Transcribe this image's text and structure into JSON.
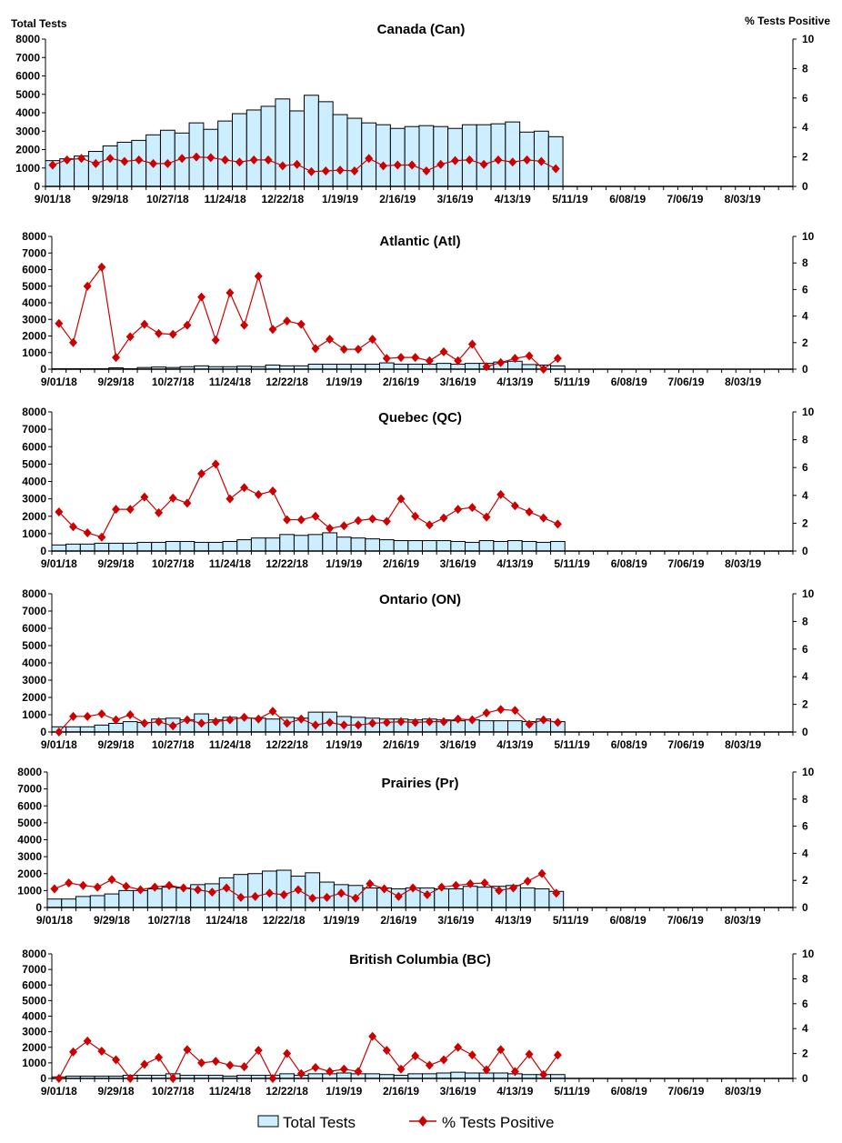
{
  "chart_data": [
    {
      "type": "bar+line",
      "title": "Canada (Can)",
      "ylabel": "Total Tests",
      "y2label": "% Tests Positive",
      "ylim": [
        0,
        8000
      ],
      "y2lim": [
        0,
        10
      ],
      "total_tests": [
        1400,
        1500,
        1650,
        1900,
        2200,
        2400,
        2500,
        2800,
        3050,
        2900,
        3450,
        3100,
        3550,
        3950,
        4150,
        4350,
        4750,
        4100,
        4950,
        4600,
        3900,
        3700,
        3450,
        3350,
        3150,
        3250,
        3300,
        3250,
        3150,
        3350,
        3350,
        3400,
        3500,
        2950,
        3000,
        2700
      ],
      "pct_positive": [
        1.45,
        1.8,
        1.9,
        1.55,
        1.9,
        1.7,
        1.8,
        1.55,
        1.55,
        1.9,
        2.0,
        1.95,
        1.8,
        1.65,
        1.8,
        1.8,
        1.4,
        1.5,
        1.0,
        1.05,
        1.1,
        1.05,
        1.9,
        1.4,
        1.45,
        1.45,
        1.05,
        1.5,
        1.75,
        1.8,
        1.5,
        1.8,
        1.65,
        1.8,
        1.7,
        1.2
      ]
    },
    {
      "type": "bar+line",
      "title": "Atlantic (Atl)",
      "ylim": [
        0,
        8000
      ],
      "y2lim": [
        0,
        10
      ],
      "total_tests": [
        30,
        30,
        30,
        30,
        80,
        30,
        100,
        130,
        100,
        150,
        200,
        150,
        150,
        180,
        150,
        250,
        200,
        200,
        300,
        300,
        300,
        300,
        300,
        380,
        300,
        300,
        300,
        350,
        300,
        350,
        350,
        430,
        480,
        280,
        250,
        200
      ],
      "pct_positive": [
        3.44,
        2.0,
        6.25,
        7.69,
        0.88,
        2.44,
        3.38,
        2.69,
        2.63,
        3.31,
        5.44,
        2.19,
        5.75,
        3.31,
        7.0,
        3.0,
        3.63,
        3.38,
        1.56,
        2.25,
        1.5,
        1.5,
        2.25,
        0.81,
        0.88,
        0.88,
        0.63,
        1.31,
        0.63,
        1.88,
        0.19,
        0.5,
        0.81,
        1.0,
        0,
        0.81
      ]
    },
    {
      "type": "bar+line",
      "title": "Quebec (QC)",
      "ylim": [
        0,
        8000
      ],
      "y2lim": [
        0,
        10
      ],
      "total_tests": [
        350,
        400,
        400,
        450,
        450,
        450,
        500,
        500,
        550,
        550,
        500,
        500,
        550,
        650,
        750,
        750,
        950,
        900,
        950,
        1050,
        800,
        750,
        700,
        650,
        600,
        600,
        600,
        600,
        550,
        500,
        600,
        550,
        600,
        550,
        500,
        550
      ],
      "pct_positive": [
        2.81,
        1.75,
        1.31,
        1.0,
        3.0,
        3.0,
        3.88,
        2.75,
        3.81,
        3.44,
        5.56,
        6.25,
        3.75,
        4.56,
        4.06,
        4.31,
        2.25,
        2.25,
        2.5,
        1.63,
        1.81,
        2.19,
        2.31,
        2.13,
        3.75,
        2.5,
        1.88,
        2.38,
        3.0,
        3.13,
        2.44,
        4.06,
        3.25,
        2.81,
        2.38,
        1.94
      ]
    },
    {
      "type": "bar+line",
      "title": "Ontario (ON)",
      "ylim": [
        0,
        8000
      ],
      "y2lim": [
        0,
        10
      ],
      "total_tests": [
        300,
        300,
        300,
        400,
        500,
        600,
        550,
        750,
        800,
        700,
        1050,
        700,
        850,
        800,
        800,
        750,
        850,
        800,
        1150,
        1150,
        900,
        850,
        800,
        750,
        750,
        700,
        750,
        700,
        650,
        700,
        650,
        650,
        650,
        600,
        750,
        600
      ],
      "pct_positive": [
        0,
        1.13,
        1.13,
        1.31,
        0.88,
        1.25,
        0.63,
        0.75,
        0.44,
        0.88,
        0.63,
        0.75,
        0.88,
        1.06,
        0.94,
        1.5,
        0.63,
        0.94,
        0.5,
        0.69,
        0.5,
        0.5,
        0.63,
        0.69,
        0.75,
        0.69,
        0.75,
        0.75,
        0.94,
        0.88,
        1.38,
        1.63,
        1.56,
        0.56,
        0.88,
        0.69
      ]
    },
    {
      "type": "bar+line",
      "title": "Prairies (Pr)",
      "ylim": [
        0,
        8000
      ],
      "y2lim": [
        0,
        10
      ],
      "total_tests": [
        500,
        500,
        650,
        700,
        800,
        1000,
        1000,
        1100,
        1200,
        1150,
        1350,
        1400,
        1750,
        1950,
        2000,
        2150,
        2200,
        1850,
        2050,
        1500,
        1350,
        1300,
        1150,
        1150,
        1100,
        1150,
        1150,
        1100,
        1100,
        1250,
        1200,
        1250,
        1300,
        1150,
        1100,
        950
      ],
      "pct_positive": [
        1.38,
        1.81,
        1.63,
        1.5,
        2.06,
        1.56,
        1.31,
        1.5,
        1.63,
        1.44,
        1.31,
        1.13,
        1.44,
        0.75,
        0.81,
        1.06,
        0.94,
        1.31,
        0.69,
        0.75,
        1.06,
        0.69,
        1.75,
        1.38,
        0.81,
        1.44,
        0.94,
        1.5,
        1.63,
        1.75,
        1.81,
        1.25,
        1.44,
        1.94,
        2.5,
        1.06
      ]
    },
    {
      "type": "bar+line",
      "title": "British Columbia (BC)",
      "ylim": [
        0,
        8000
      ],
      "y2lim": [
        0,
        10
      ],
      "total_tests": [
        100,
        150,
        150,
        150,
        150,
        200,
        200,
        200,
        300,
        200,
        200,
        200,
        150,
        200,
        200,
        200,
        300,
        200,
        300,
        300,
        350,
        300,
        300,
        250,
        200,
        300,
        300,
        350,
        400,
        350,
        350,
        350,
        300,
        250,
        250,
        250
      ],
      "pct_positive": [
        0,
        2.13,
        3.0,
        2.19,
        1.5,
        0,
        1.13,
        1.69,
        0,
        2.31,
        1.25,
        1.38,
        1.06,
        0.94,
        2.25,
        0,
        2.0,
        0.38,
        0.88,
        0.56,
        0.75,
        0.56,
        3.38,
        2.25,
        0.75,
        1.81,
        1.06,
        1.5,
        2.5,
        1.88,
        0.69,
        2.31,
        0.56,
        1.94,
        0.31,
        1.88
      ]
    }
  ],
  "x_tick_labels": [
    "9/01/18",
    "9/29/18",
    "10/27/18",
    "11/24/18",
    "12/22/18",
    "1/19/19",
    "2/16/19",
    "3/16/19",
    "4/13/19",
    "5/11/19",
    "6/08/19",
    "7/06/19",
    "8/03/19"
  ],
  "y_tick_labels": [
    "0",
    "1000",
    "2000",
    "3000",
    "4000",
    "5000",
    "6000",
    "7000",
    "8000"
  ],
  "y2_tick_labels": [
    "0",
    "2",
    "4",
    "6",
    "8",
    "10"
  ],
  "legend": {
    "bars": "Total Tests",
    "line": "% Tests Positive"
  },
  "colors": {
    "bar_fill": "#cceeff",
    "bar_stroke": "#000000",
    "line": "#cc0000"
  }
}
